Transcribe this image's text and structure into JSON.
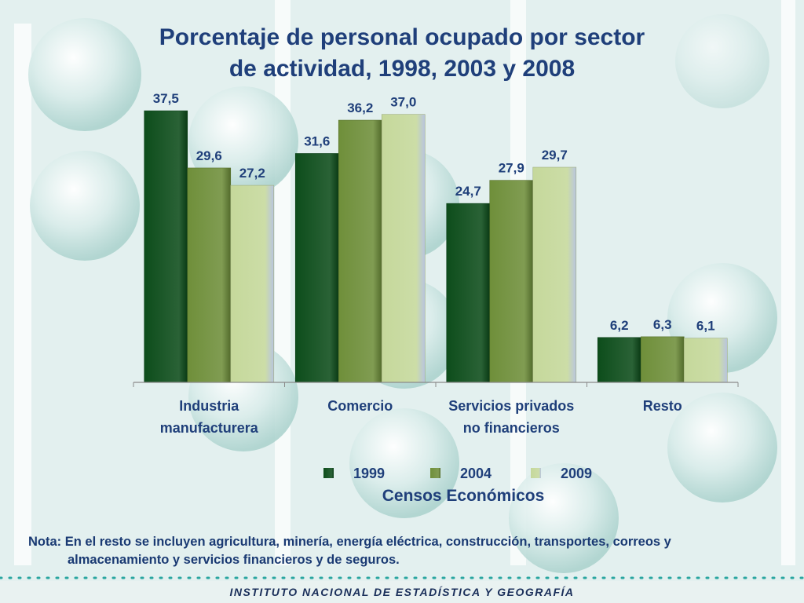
{
  "chart_data": {
    "type": "bar",
    "title": "Porcentaje de personal ocupado por sector",
    "title_line2": "de actividad, 1998, 2003 y 2008",
    "categories": [
      [
        "Industria",
        "manufacturera"
      ],
      [
        "Comercio"
      ],
      [
        "Servicios privados",
        "no financieros"
      ],
      [
        "Resto"
      ]
    ],
    "series": [
      {
        "name": "1999",
        "values": [
          37.5,
          31.6,
          24.7,
          6.2
        ],
        "labels": [
          "37,5",
          "31,6",
          "24,7",
          "6,2"
        ],
        "color": "#0d4d1b"
      },
      {
        "name": "2004",
        "values": [
          29.6,
          36.2,
          27.9,
          6.3
        ],
        "labels": [
          "29,6",
          "36,2",
          "27,9",
          "6,3"
        ],
        "color": "#6f8f3a"
      },
      {
        "name": "2009",
        "values": [
          27.2,
          37.0,
          29.7,
          6.1
        ],
        "labels": [
          "27,2",
          "37,0",
          "29,7",
          "6,1"
        ],
        "color": "#c5d89b"
      }
    ],
    "legend_title": "Censos Económicos",
    "legend_position": "bottom",
    "ylim": [
      0,
      40
    ],
    "grid": false,
    "data_label_color": "#1f3f7a"
  },
  "note": {
    "line1": "Nota: En el resto se incluyen agricultura, minería, energía eléctrica, construcción, transportes, correos y",
    "line2": "almacenamiento y servicios financieros y de seguros."
  },
  "footer": {
    "institution": "INSTITUTO NACIONAL DE ESTADÍSTICA Y GEOGRAFÍA"
  },
  "colors": {
    "title": "#1f3f7a",
    "background": "#e3f0ef"
  }
}
